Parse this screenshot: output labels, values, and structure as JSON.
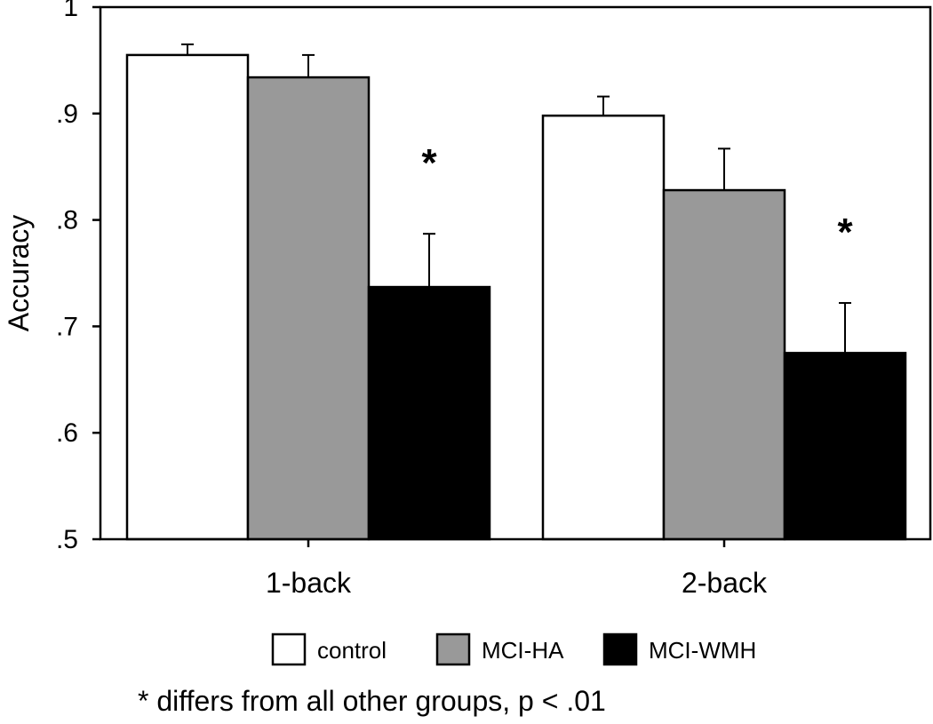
{
  "chart_data": {
    "type": "bar",
    "ylabel": "Accuracy",
    "ylim": [
      0.5,
      1.0
    ],
    "yticks": [
      {
        "value": 1.0,
        "label": "1"
      },
      {
        "value": 0.9,
        "label": ".9"
      },
      {
        "value": 0.8,
        "label": ".8"
      },
      {
        "value": 0.7,
        "label": ".7"
      },
      {
        "value": 0.6,
        "label": ".6"
      },
      {
        "value": 0.5,
        "label": ".5"
      }
    ],
    "categories": [
      "1-back",
      "2-back"
    ],
    "series": [
      {
        "name": "control",
        "color": "#ffffff",
        "values": [
          0.955,
          0.898
        ],
        "errors": [
          0.01,
          0.018
        ]
      },
      {
        "name": "MCI-HA",
        "color": "#999999",
        "values": [
          0.934,
          0.828
        ],
        "errors": [
          0.021,
          0.039
        ]
      },
      {
        "name": "MCI-WMH",
        "color": "#000000",
        "values": [
          0.737,
          0.675
        ],
        "errors": [
          0.05,
          0.047
        ]
      }
    ],
    "significance": [
      {
        "category_index": 0,
        "series_index": 2,
        "mark": "*"
      },
      {
        "category_index": 1,
        "series_index": 2,
        "mark": "*"
      }
    ],
    "footnote": "* differs from all other groups, p < .01"
  }
}
